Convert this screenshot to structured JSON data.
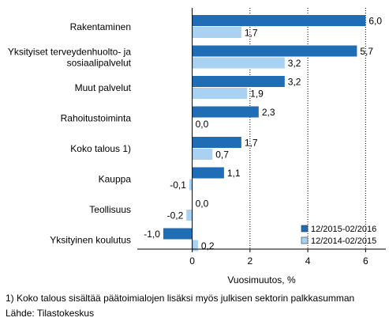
{
  "chart_data": {
    "type": "bar",
    "orientation": "horizontal",
    "categories": [
      [
        "Rakentaminen"
      ],
      [
        "Yksityiset terveydenhuolto- ja",
        "sosiaalipalvelut"
      ],
      [
        "Muut palvelut"
      ],
      [
        "Rahoitustoiminta"
      ],
      [
        "Koko talous 1)"
      ],
      [
        "Kauppa"
      ],
      [
        "Teollisuus"
      ],
      [
        "Yksityinen koulutus"
      ]
    ],
    "series": [
      {
        "name": "12/2015-02/2016",
        "color": "#1f6db5",
        "values": [
          6.0,
          5.7,
          3.2,
          2.3,
          1.7,
          1.1,
          0.0,
          -1.0
        ],
        "labels": [
          "6,0",
          "5,7",
          "3,2",
          "2,3",
          "1,7",
          "1,1",
          "0,0",
          "-1,0"
        ]
      },
      {
        "name": "12/2014-02/2015",
        "color": "#a9d1f2",
        "values": [
          1.7,
          3.2,
          1.9,
          0.0,
          0.7,
          -0.1,
          -0.2,
          0.2
        ],
        "labels": [
          "1,7",
          "3,2",
          "1,9",
          "0,0",
          "0,7",
          "-0,1",
          "-0,2",
          "0,2"
        ]
      }
    ],
    "xlabel": "Vuosimuutos, %",
    "xlim": [
      -1.9,
      6.7
    ],
    "xticks": [
      0,
      2,
      4,
      6
    ],
    "xtick_labels": [
      "0",
      "2",
      "4",
      "6"
    ],
    "grid": "vertical",
    "legend_position": "bottom-right"
  },
  "footnote": "1) Koko talous sisältää päätoimialojen lisäksi myös julkisen sektorin palkkasumman",
  "source": "Lähde: Tilastokeskus"
}
